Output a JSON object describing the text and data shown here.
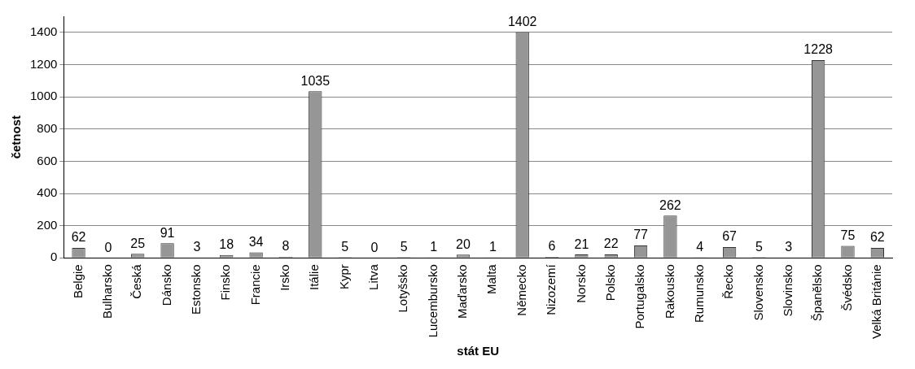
{
  "chart_data": {
    "type": "bar",
    "xlabel": "stát EU",
    "ylabel": "četnost",
    "categories": [
      "Belgie",
      "Bulharsko",
      "Česká",
      "Dánsko",
      "Estonsko",
      "Finsko",
      "Francie",
      "Irsko",
      "Itálie",
      "Kypr",
      "Litva",
      "Lotyšsko",
      "Lucembursko",
      "Maďarsko",
      "Malta",
      "Německo",
      "Nizozemí",
      "Norsko",
      "Polsko",
      "Portugalsko",
      "Rakousko",
      "Rumunsko",
      "Řecko",
      "Slovensko",
      "Slovinsko",
      "Španělsko",
      "Švédsko",
      "Velká Británie"
    ],
    "values": [
      62,
      0,
      25,
      91,
      3,
      18,
      34,
      8,
      1035,
      5,
      0,
      5,
      1,
      20,
      1,
      1402,
      6,
      21,
      22,
      77,
      262,
      4,
      67,
      5,
      3,
      1228,
      75,
      62
    ],
    "color": "#969696",
    "ylim": [
      0,
      1500
    ],
    "yticks": [
      0,
      200,
      400,
      600,
      800,
      1000,
      1200,
      1400
    ],
    "grid": "y",
    "legend": false,
    "data_labels": true
  }
}
